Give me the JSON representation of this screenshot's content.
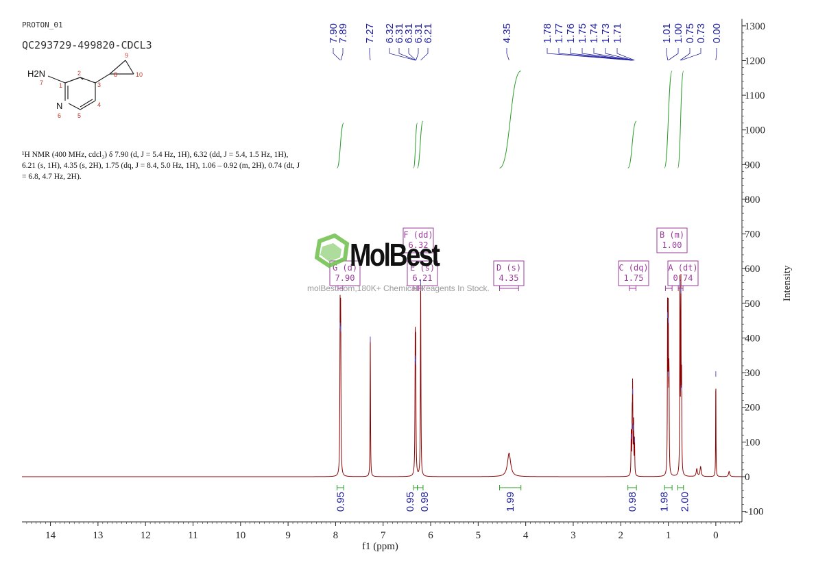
{
  "experiment": "PROTON_01",
  "sample_name": "QC293729-499820-CDCL3",
  "nmr_text": "¹H NMR (400 MHz, cdcl₃) δ 7.90 (d, J = 5.4 Hz, 1H), 6.32 (dd, J = 5.4, 1.5 Hz, 1H), 6.21 (s, 1H), 4.35 (s, 2H), 1.75 (dq, J = 8.4, 5.0 Hz, 1H), 1.06 – 0.92 (m, 2H), 0.74 (dt, J = 6.8, 4.7 Hz, 2H).",
  "watermark": {
    "logo": "MolBest",
    "url": "molBest.com,180K+ Chemical Reagents In Stock."
  },
  "structure": {
    "labels": [
      "H2N",
      "7",
      "1",
      "2",
      "3",
      "4",
      "5",
      "N",
      "6",
      "8",
      "9",
      "10"
    ]
  },
  "colors": {
    "spectrum": "#8b0000",
    "peak_labels": "#1f1f9f",
    "integral": "#2a9a2a",
    "multiplet_box": "#9a3a9a",
    "axis": "#222222"
  },
  "chart_data": {
    "type": "line",
    "xlabel": "f1 (ppm)",
    "ylabel": "Intensity",
    "xlim": [
      14.6,
      -0.55
    ],
    "ylim": [
      -120,
      1320
    ],
    "x_ticks": [
      14,
      13,
      12,
      11,
      10,
      9,
      8,
      7,
      6,
      5,
      4,
      3,
      2,
      1,
      0
    ],
    "y_ticks": [
      -100,
      0,
      100,
      200,
      300,
      400,
      500,
      600,
      700,
      800,
      900,
      1000,
      1100,
      1200,
      1300
    ],
    "peak_labels": [
      "7.90",
      "7.89",
      "7.27",
      "6.32",
      "6.31",
      "6.31",
      "6.31",
      "6.21",
      "4.35",
      "1.78",
      "1.77",
      "1.76",
      "1.75",
      "1.74",
      "1.73",
      "1.71",
      "1.01",
      "1.00",
      "0.75",
      "0.73",
      "0.00"
    ],
    "peak_label_ppm": [
      7.9,
      7.89,
      7.27,
      6.32,
      6.31,
      6.31,
      6.31,
      6.21,
      4.35,
      1.78,
      1.77,
      1.76,
      1.75,
      1.74,
      1.73,
      1.71,
      1.01,
      1.0,
      0.75,
      0.73,
      0.0
    ],
    "peaks": [
      {
        "ppm": 7.905,
        "height": 440,
        "width": 0.012
      },
      {
        "ppm": 7.893,
        "height": 430,
        "width": 0.012
      },
      {
        "ppm": 7.27,
        "height": 400,
        "width": 0.01
      },
      {
        "ppm": 6.325,
        "height": 345,
        "width": 0.012
      },
      {
        "ppm": 6.315,
        "height": 335,
        "width": 0.012
      },
      {
        "ppm": 6.21,
        "height": 565,
        "width": 0.012
      },
      {
        "ppm": 4.35,
        "height": 68,
        "width": 0.08
      },
      {
        "ppm": 1.78,
        "height": 120,
        "width": 0.01
      },
      {
        "ppm": 1.76,
        "height": 150,
        "width": 0.01
      },
      {
        "ppm": 1.75,
        "height": 250,
        "width": 0.01
      },
      {
        "ppm": 1.73,
        "height": 145,
        "width": 0.01
      },
      {
        "ppm": 1.71,
        "height": 110,
        "width": 0.01
      },
      {
        "ppm": 1.015,
        "height": 470,
        "width": 0.01
      },
      {
        "ppm": 1.0,
        "height": 455,
        "width": 0.01
      },
      {
        "ppm": 0.985,
        "height": 300,
        "width": 0.01
      },
      {
        "ppm": 0.755,
        "height": 560,
        "width": 0.01
      },
      {
        "ppm": 0.735,
        "height": 540,
        "width": 0.01
      },
      {
        "ppm": 0.72,
        "height": 260,
        "width": 0.01
      },
      {
        "ppm": 0.4,
        "height": 22,
        "width": 0.03
      },
      {
        "ppm": 0.32,
        "height": 28,
        "width": 0.03
      },
      {
        "ppm": 0.0,
        "height": 300,
        "width": 0.008
      },
      {
        "ppm": -0.28,
        "height": 15,
        "width": 0.03
      }
    ],
    "integral_curves": [
      {
        "from": 7.97,
        "to": 7.83,
        "y_start": 890,
        "y_end": 1020
      },
      {
        "from": 6.36,
        "to": 6.28,
        "y_start": 890,
        "y_end": 1020
      },
      {
        "from": 6.28,
        "to": 6.16,
        "y_start": 890,
        "y_end": 1025
      },
      {
        "from": 4.55,
        "to": 4.1,
        "y_start": 890,
        "y_end": 1170
      },
      {
        "from": 1.85,
        "to": 1.67,
        "y_start": 890,
        "y_end": 1025
      },
      {
        "from": 1.08,
        "to": 0.92,
        "y_start": 890,
        "y_end": 1170
      },
      {
        "from": 0.8,
        "to": 0.68,
        "y_start": 890,
        "y_end": 1170
      }
    ],
    "integrals": [
      {
        "label": "0.95",
        "from": 7.97,
        "to": 7.83
      },
      {
        "label": "0.95",
        "from": 6.36,
        "to": 6.28
      },
      {
        "label": "0.98",
        "from": 6.28,
        "to": 6.16
      },
      {
        "label": "1.99",
        "from": 4.55,
        "to": 4.1
      },
      {
        "label": "0.98",
        "from": 1.85,
        "to": 1.67
      },
      {
        "label": "1.98",
        "from": 1.08,
        "to": 0.92
      },
      {
        "label": "2.00",
        "from": 0.8,
        "to": 0.68
      }
    ],
    "multiplets": [
      {
        "name": "G (d)",
        "shift": "7.90",
        "ppm": 7.9,
        "bar_from": 7.95,
        "bar_to": 7.85
      },
      {
        "name": "F (dd)",
        "shift": "6.32",
        "ppm": 6.32,
        "bar_from": 6.37,
        "bar_to": 6.28
      },
      {
        "name": "E (s)",
        "shift": "6.21",
        "ppm": 6.21,
        "bar_from": 6.25,
        "bar_to": 6.17
      },
      {
        "name": "D (s)",
        "shift": "4.35",
        "ppm": 4.35,
        "bar_from": 4.55,
        "bar_to": 4.15
      },
      {
        "name": "C (dq)",
        "shift": "1.75",
        "ppm": 1.75,
        "bar_from": 1.82,
        "bar_to": 1.68
      },
      {
        "name": "B (m)",
        "shift": "1.00",
        "ppm": 1.0,
        "bar_from": 1.06,
        "bar_to": 0.92
      },
      {
        "name": "A (dt)",
        "shift": "0.74",
        "ppm": 0.74,
        "bar_from": 0.79,
        "bar_to": 0.69
      }
    ]
  }
}
